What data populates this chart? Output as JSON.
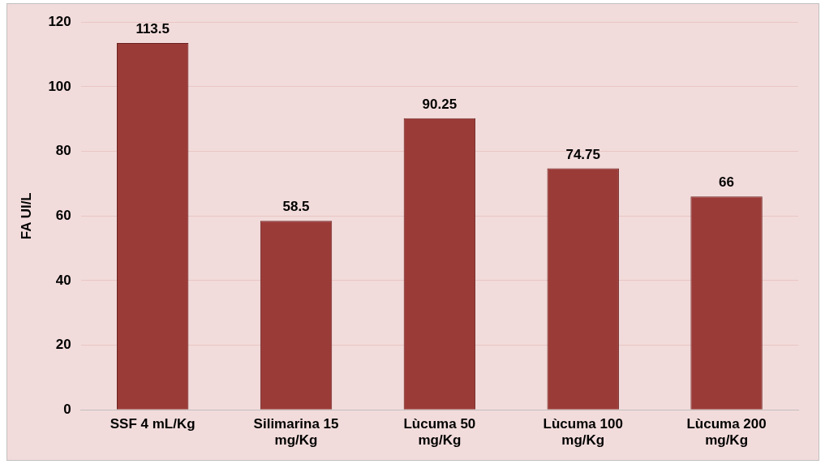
{
  "chart_data": {
    "type": "bar",
    "ylabel": "FA UI/L",
    "categories": [
      "SSF 4 mL/Kg",
      "Silimarina 15 mg/Kg",
      "Lùcuma 50 mg/Kg",
      "Lùcuma 100 mg/Kg",
      "Lùcuma 200 mg/Kg"
    ],
    "values": [
      113.5,
      58.5,
      90.25,
      74.75,
      66
    ],
    "color": "#9b3b38",
    "ylim": [
      0,
      120
    ],
    "yticks": [
      0,
      20,
      40,
      60,
      80,
      100,
      120
    ],
    "grid": "y",
    "data_labels": true
  }
}
